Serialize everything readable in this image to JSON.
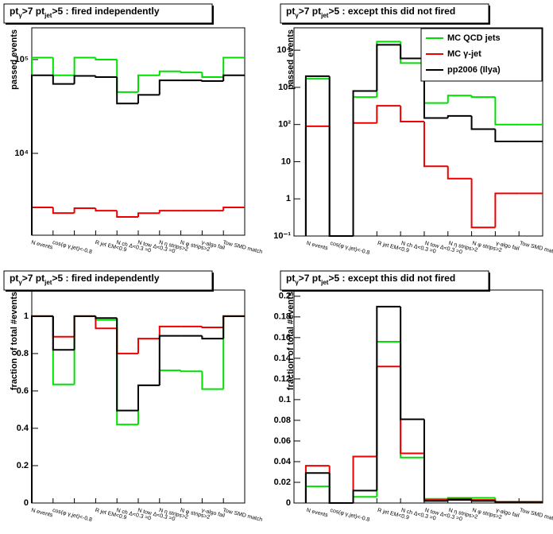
{
  "chart_data": [
    {
      "type": "step",
      "title": [
        "pt",
        "γ",
        ">7  pt",
        "jet",
        ">5  : fired independently"
      ],
      "ylabel": "passed events",
      "log": true,
      "xlim": [
        0,
        10
      ],
      "ylim": [
        1340,
        218000
      ],
      "yticks": [
        {
          "value": 10000,
          "label": "10⁴"
        },
        {
          "value": 100000,
          "label": "10⁵"
        }
      ],
      "categories": [
        "N events",
        "cos(φ γ,jet)<-0.8",
        null,
        "R jet EM<0.9",
        "N ch Δ<0.3 =0",
        "N tow Δ<0.3 =0",
        "N η strips>2",
        "N φ strips>2",
        "γ-algo fail",
        "Tow SMD match"
      ],
      "series": [
        {
          "color": "#00e000",
          "values": [
            105000,
            68000,
            105000,
            100000,
            45000,
            68000,
            75000,
            73000,
            65000,
            105000
          ]
        },
        {
          "color": "#ee0000",
          "values": [
            2650,
            2310,
            2600,
            2450,
            2100,
            2300,
            2450,
            2450,
            2450,
            2650
          ]
        },
        {
          "color": "#000000",
          "values": [
            68000,
            55000,
            67000,
            65000,
            34000,
            42000,
            60000,
            60000,
            59000,
            68000
          ]
        }
      ]
    },
    {
      "type": "step",
      "title": [
        "pt",
        "γ",
        ">7  pt",
        "jet",
        ">5  : except this did not fired"
      ],
      "ylabel": "passed events",
      "log": true,
      "xlim": [
        -0.5,
        10
      ],
      "ylim": [
        0.1,
        40000
      ],
      "yticks": [
        {
          "value": 0.1,
          "label": "10⁻¹"
        },
        1,
        10,
        {
          "value": 100,
          "label": "10²"
        },
        {
          "value": 1000,
          "label": "10³"
        },
        {
          "value": 10000,
          "label": "10⁴"
        }
      ],
      "categories": [
        "N events",
        "cos(φ γ,jet)<-0.8",
        null,
        "R jet EM<0.9",
        "N ch Δ<0.3 =0",
        "N tow Δ<0.3 =0",
        "N η strips>2",
        "N φ strips>2",
        "γ-algo fail",
        "Tow SMD match"
      ],
      "legend": "top-right",
      "series": [
        {
          "name": "MC QCD jets",
          "color": "#00e000",
          "values": [
            1700,
            0.1,
            550,
            17000,
            4500,
            380,
            600,
            550,
            100,
            100
          ]
        },
        {
          "name": "MC γ-jet",
          "color": "#ee0000",
          "values": [
            90,
            0.1,
            110,
            320,
            120,
            7.5,
            3.5,
            0.17,
            1.4,
            1.4
          ]
        },
        {
          "name": "pp2006 (Ilya)",
          "color": "#000000",
          "values": [
            2000,
            0.1,
            800,
            14000,
            6000,
            150,
            170,
            75,
            35,
            35
          ]
        }
      ]
    },
    {
      "type": "step",
      "title": [
        "pt",
        "γ",
        ">7  pt",
        "jet",
        ">5  : fired independently"
      ],
      "ylabel": "fraction of total #events",
      "log": false,
      "xlim": [
        0,
        10
      ],
      "ylim": [
        0,
        1.14
      ],
      "yticks": [
        0,
        0.2,
        0.4,
        0.6,
        0.8,
        1
      ],
      "categories": [
        "N events",
        "cos(φ γ,jet)<-0.8",
        null,
        "R jet EM<0.9",
        "N ch Δ<0.3 =0",
        "N tow Δ<0.3 =0",
        "N η strips>2",
        "N φ strips>2",
        "γ-algo fail",
        "Tow SMD match"
      ],
      "series": [
        {
          "color": "#00e000",
          "values": [
            1,
            0.635,
            1,
            0.98,
            0.42,
            0.63,
            0.71,
            0.705,
            0.61,
            1
          ]
        },
        {
          "color": "#ee0000",
          "values": [
            1,
            0.89,
            1,
            0.935,
            0.8,
            0.88,
            0.945,
            0.945,
            0.94,
            1
          ]
        },
        {
          "color": "#000000",
          "values": [
            1,
            0.82,
            1,
            0.99,
            0.495,
            0.63,
            0.895,
            0.895,
            0.88,
            1
          ]
        }
      ]
    },
    {
      "type": "step",
      "title": [
        "pt",
        "γ",
        ">7  pt",
        "jet",
        ">5  : except this did not fired"
      ],
      "ylabel": "fraction of total #events",
      "log": false,
      "xlim": [
        -0.5,
        10
      ],
      "ylim": [
        0,
        0.206
      ],
      "yticks": [
        0,
        0.02,
        0.04,
        0.06,
        0.08,
        0.1,
        0.12,
        0.14,
        0.16,
        0.18,
        0.2
      ],
      "categories": [
        "N events",
        "cos(φ γ,jet)<-0.8",
        null,
        "R jet EM<0.9",
        "N ch Δ<0.3 =0",
        "N tow Δ<0.3 =0",
        "N η strips>2",
        "N φ strips>2",
        "γ-algo fail",
        "Tow SMD match"
      ],
      "series": [
        {
          "color": "#00e000",
          "values": [
            0.016,
            0,
            0.006,
            0.156,
            0.044,
            0.004,
            0.005,
            0.005,
            0.001,
            0.001
          ]
        },
        {
          "color": "#ee0000",
          "values": [
            0.036,
            0,
            0.045,
            0.132,
            0.048,
            0.003,
            0.004,
            0.003,
            0.001,
            0.001
          ]
        },
        {
          "color": "#000000",
          "values": [
            0.029,
            0,
            0.012,
            0.19,
            0.081,
            0.002,
            0.003,
            0.002,
            0.001,
            0.001
          ]
        }
      ]
    }
  ]
}
